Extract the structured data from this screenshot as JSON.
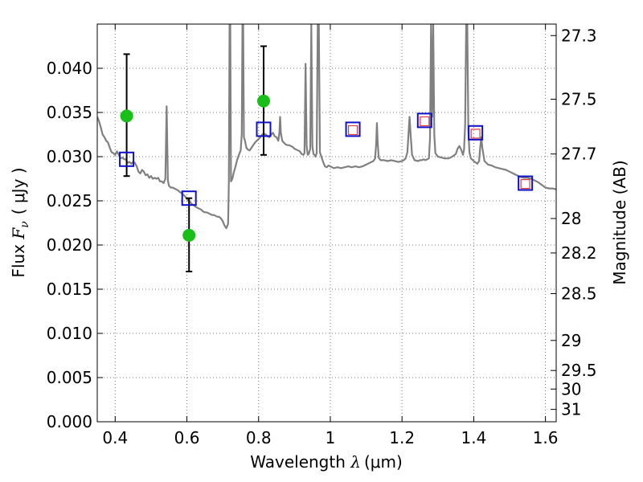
{
  "chart_data": {
    "type": "scatter",
    "title": "",
    "xlabel": "Wavelength  λ (μm)",
    "xlabel_parts": {
      "prefix": "Wavelength  ",
      "symbol": "λ",
      "unit": "(μm)"
    },
    "ylabel": "Flux  Fν  ( μJy )",
    "ylabel_parts": {
      "prefix": "Flux  ",
      "symbol": "F",
      "sub": "ν",
      "unit": "( μJy )"
    },
    "y2label": "Magnitude (AB)",
    "xlim": [
      0.35,
      1.63
    ],
    "ylim": [
      0.0,
      0.045
    ],
    "grid": true,
    "grid_style": "dotted",
    "x_ticks": [
      0.4,
      0.6,
      0.8,
      1.0,
      1.2,
      1.4,
      1.6
    ],
    "x_tick_labels": [
      "0.4",
      "0.6",
      "0.8",
      "1",
      "1.2",
      "1.4",
      "1.6"
    ],
    "y_ticks": [
      0.0,
      0.005,
      0.01,
      0.015,
      0.02,
      0.025,
      0.03,
      0.035,
      0.04
    ],
    "y_tick_labels": [
      "0.000",
      "0.005",
      "0.010",
      "0.015",
      "0.020",
      "0.025",
      "0.030",
      "0.035",
      "0.040"
    ],
    "y2_ticks": [
      {
        "label": "27.3",
        "flux": 0.0437
      },
      {
        "label": "27.5",
        "flux": 0.0365
      },
      {
        "label": "27.7",
        "flux": 0.0303
      },
      {
        "label": "28",
        "flux": 0.023
      },
      {
        "label": "28.2",
        "flux": 0.0191
      },
      {
        "label": "28.5",
        "flux": 0.0145
      },
      {
        "label": "29",
        "flux": 0.0092
      },
      {
        "label": "29.5",
        "flux": 0.0058
      },
      {
        "label": "30",
        "flux": 0.0037
      },
      {
        "label": "31",
        "flux": 0.0014
      }
    ],
    "colors": {
      "model": "#808080",
      "observed": "#19be19",
      "errorbar": "#000000",
      "model_photometry": "#1010c8",
      "input_photometry": "#e03c3c"
    },
    "series": [
      {
        "kind": "line",
        "points": [
          [
            0.35,
            0.0345
          ],
          [
            0.355,
            0.034
          ],
          [
            0.36,
            0.0333
          ],
          [
            0.365,
            0.0325
          ],
          [
            0.37,
            0.0322
          ],
          [
            0.375,
            0.0318
          ],
          [
            0.38,
            0.0316
          ],
          [
            0.385,
            0.031
          ],
          [
            0.39,
            0.0305
          ],
          [
            0.395,
            0.0304
          ],
          [
            0.4,
            0.0302
          ],
          [
            0.405,
            0.0306
          ],
          [
            0.41,
            0.0302
          ],
          [
            0.415,
            0.0298
          ],
          [
            0.42,
            0.0299
          ],
          [
            0.425,
            0.0297
          ],
          [
            0.43,
            0.0297
          ],
          [
            0.435,
            0.0293
          ],
          [
            0.44,
            0.0294
          ],
          [
            0.445,
            0.0292
          ],
          [
            0.45,
            0.0294
          ],
          [
            0.455,
            0.0293
          ],
          [
            0.46,
            0.0289
          ],
          [
            0.465,
            0.0283
          ],
          [
            0.47,
            0.0281
          ],
          [
            0.475,
            0.0285
          ],
          [
            0.48,
            0.0283
          ],
          [
            0.485,
            0.0279
          ],
          [
            0.49,
            0.028
          ],
          [
            0.495,
            0.0276
          ],
          [
            0.5,
            0.0278
          ],
          [
            0.505,
            0.0275
          ],
          [
            0.51,
            0.0276
          ],
          [
            0.515,
            0.0275
          ],
          [
            0.52,
            0.0276
          ],
          [
            0.525,
            0.0272
          ],
          [
            0.53,
            0.0272
          ],
          [
            0.535,
            0.027
          ],
          [
            0.54,
            0.0275
          ],
          [
            0.5435,
            0.0357
          ],
          [
            0.547,
            0.0273
          ],
          [
            0.55,
            0.0267
          ],
          [
            0.555,
            0.0265
          ],
          [
            0.56,
            0.0265
          ],
          [
            0.565,
            0.0264
          ],
          [
            0.57,
            0.0263
          ],
          [
            0.575,
            0.0262
          ],
          [
            0.58,
            0.026
          ],
          [
            0.585,
            0.0259
          ],
          [
            0.59,
            0.0257
          ],
          [
            0.595,
            0.0255
          ],
          [
            0.6,
            0.0252
          ],
          [
            0.605,
            0.025
          ],
          [
            0.61,
            0.0248
          ],
          [
            0.615,
            0.0246
          ],
          [
            0.62,
            0.0245
          ],
          [
            0.625,
            0.0243
          ],
          [
            0.63,
            0.0242
          ],
          [
            0.635,
            0.0241
          ],
          [
            0.64,
            0.024
          ],
          [
            0.645,
            0.0238
          ],
          [
            0.65,
            0.0237
          ],
          [
            0.655,
            0.0237
          ],
          [
            0.66,
            0.0236
          ],
          [
            0.665,
            0.0235
          ],
          [
            0.67,
            0.0234
          ],
          [
            0.675,
            0.0234
          ],
          [
            0.68,
            0.0233
          ],
          [
            0.685,
            0.0232
          ],
          [
            0.69,
            0.0232
          ],
          [
            0.695,
            0.023
          ],
          [
            0.7,
            0.0227
          ],
          [
            0.705,
            0.0222
          ],
          [
            0.71,
            0.0219
          ],
          [
            0.715,
            0.0224
          ],
          [
            0.717,
            0.027
          ],
          [
            0.719,
            0.045
          ],
          [
            0.721,
            0.045
          ],
          [
            0.723,
            0.0272
          ],
          [
            0.727,
            0.0275
          ],
          [
            0.73,
            0.0281
          ],
          [
            0.735,
            0.0288
          ],
          [
            0.74,
            0.0296
          ],
          [
            0.745,
            0.0302
          ],
          [
            0.75,
            0.0307
          ],
          [
            0.753,
            0.0325
          ],
          [
            0.755,
            0.045
          ],
          [
            0.757,
            0.045
          ],
          [
            0.759,
            0.0322
          ],
          [
            0.762,
            0.0318
          ],
          [
            0.766,
            0.031
          ],
          [
            0.77,
            0.0308
          ],
          [
            0.775,
            0.0307
          ],
          [
            0.78,
            0.031
          ],
          [
            0.785,
            0.0313
          ],
          [
            0.79,
            0.0316
          ],
          [
            0.795,
            0.0318
          ],
          [
            0.8,
            0.032
          ],
          [
            0.805,
            0.0322
          ],
          [
            0.81,
            0.0325
          ],
          [
            0.815,
            0.0326
          ],
          [
            0.82,
            0.0325
          ],
          [
            0.825,
            0.0323
          ],
          [
            0.83,
            0.0322
          ],
          [
            0.835,
            0.0325
          ],
          [
            0.84,
            0.0327
          ],
          [
            0.845,
            0.0323
          ],
          [
            0.85,
            0.0322
          ],
          [
            0.855,
            0.0318
          ],
          [
            0.858,
            0.0327
          ],
          [
            0.86,
            0.0345
          ],
          [
            0.862,
            0.0327
          ],
          [
            0.866,
            0.0318
          ],
          [
            0.87,
            0.0316
          ],
          [
            0.875,
            0.0314
          ],
          [
            0.88,
            0.0313
          ],
          [
            0.885,
            0.0313
          ],
          [
            0.89,
            0.0312
          ],
          [
            0.895,
            0.0311
          ],
          [
            0.9,
            0.0309
          ],
          [
            0.905,
            0.0308
          ],
          [
            0.91,
            0.0307
          ],
          [
            0.915,
            0.0306
          ],
          [
            0.92,
            0.0303
          ],
          [
            0.925,
            0.0302
          ],
          [
            0.928,
            0.0304
          ],
          [
            0.931,
            0.0405
          ],
          [
            0.934,
            0.0312
          ],
          [
            0.937,
            0.0302
          ],
          [
            0.94,
            0.0303
          ],
          [
            0.944,
            0.0309
          ],
          [
            0.947,
            0.045
          ],
          [
            0.95,
            0.0312
          ],
          [
            0.953,
            0.0303
          ],
          [
            0.956,
            0.0302
          ],
          [
            0.959,
            0.03
          ],
          [
            0.962,
            0.0304
          ],
          [
            0.965,
            0.045
          ],
          [
            0.968,
            0.045
          ],
          [
            0.971,
            0.0305
          ],
          [
            0.975,
            0.03
          ],
          [
            0.98,
            0.0294
          ],
          [
            0.985,
            0.0289
          ],
          [
            0.99,
            0.0288
          ],
          [
            0.995,
            0.029
          ],
          [
            1.0,
            0.0289
          ],
          [
            1.01,
            0.0287
          ],
          [
            1.02,
            0.0288
          ],
          [
            1.03,
            0.0287
          ],
          [
            1.04,
            0.0288
          ],
          [
            1.05,
            0.0289
          ],
          [
            1.06,
            0.0288
          ],
          [
            1.07,
            0.0289
          ],
          [
            1.08,
            0.0288
          ],
          [
            1.09,
            0.0289
          ],
          [
            1.1,
            0.0291
          ],
          [
            1.11,
            0.0293
          ],
          [
            1.12,
            0.0295
          ],
          [
            1.125,
            0.0298
          ],
          [
            1.128,
            0.0315
          ],
          [
            1.13,
            0.0338
          ],
          [
            1.132,
            0.0317
          ],
          [
            1.135,
            0.0299
          ],
          [
            1.14,
            0.0296
          ],
          [
            1.15,
            0.0296
          ],
          [
            1.16,
            0.0295
          ],
          [
            1.17,
            0.0296
          ],
          [
            1.18,
            0.0295
          ],
          [
            1.19,
            0.0294
          ],
          [
            1.2,
            0.0295
          ],
          [
            1.205,
            0.0296
          ],
          [
            1.21,
            0.0298
          ],
          [
            1.215,
            0.0305
          ],
          [
            1.218,
            0.0325
          ],
          [
            1.221,
            0.0345
          ],
          [
            1.224,
            0.0325
          ],
          [
            1.228,
            0.0302
          ],
          [
            1.235,
            0.0296
          ],
          [
            1.245,
            0.0295
          ],
          [
            1.25,
            0.0296
          ],
          [
            1.255,
            0.0296
          ],
          [
            1.26,
            0.0297
          ],
          [
            1.265,
            0.0296
          ],
          [
            1.27,
            0.0297
          ],
          [
            1.275,
            0.0298
          ],
          [
            1.278,
            0.032
          ],
          [
            1.281,
            0.045
          ],
          [
            1.284,
            0.0345
          ],
          [
            1.287,
            0.045
          ],
          [
            1.29,
            0.0325
          ],
          [
            1.293,
            0.0304
          ],
          [
            1.3,
            0.03
          ],
          [
            1.31,
            0.0299
          ],
          [
            1.32,
            0.0298
          ],
          [
            1.33,
            0.0298
          ],
          [
            1.34,
            0.03
          ],
          [
            1.35,
            0.0303
          ],
          [
            1.355,
            0.0309
          ],
          [
            1.36,
            0.0312
          ],
          [
            1.365,
            0.0308
          ],
          [
            1.37,
            0.0302
          ],
          [
            1.373,
            0.0308
          ],
          [
            1.376,
            0.0335
          ],
          [
            1.379,
            0.045
          ],
          [
            1.382,
            0.045
          ],
          [
            1.385,
            0.033
          ],
          [
            1.388,
            0.0305
          ],
          [
            1.392,
            0.0298
          ],
          [
            1.4,
            0.0295
          ],
          [
            1.41,
            0.0292
          ],
          [
            1.415,
            0.0295
          ],
          [
            1.418,
            0.031
          ],
          [
            1.421,
            0.0322
          ],
          [
            1.424,
            0.031
          ],
          [
            1.43,
            0.0295
          ],
          [
            1.44,
            0.0291
          ],
          [
            1.45,
            0.029
          ],
          [
            1.46,
            0.0288
          ],
          [
            1.47,
            0.0287
          ],
          [
            1.48,
            0.0286
          ],
          [
            1.49,
            0.0285
          ],
          [
            1.5,
            0.0283
          ],
          [
            1.51,
            0.0281
          ],
          [
            1.52,
            0.0279
          ],
          [
            1.53,
            0.0277
          ],
          [
            1.54,
            0.0276
          ],
          [
            1.55,
            0.0276
          ],
          [
            1.56,
            0.0275
          ],
          [
            1.57,
            0.0273
          ],
          [
            1.58,
            0.0271
          ],
          [
            1.59,
            0.0268
          ],
          [
            1.6,
            0.0265
          ],
          [
            1.61,
            0.0264
          ],
          [
            1.62,
            0.0264
          ],
          [
            1.63,
            0.0263
          ]
        ]
      },
      {
        "kind": "observed_with_errorbars",
        "points": [
          {
            "x": 0.432,
            "y": 0.0346,
            "ylow": 0.0278,
            "yhigh": 0.0416
          },
          {
            "x": 0.606,
            "y": 0.0211,
            "ylow": 0.017,
            "yhigh": 0.0253
          },
          {
            "x": 0.814,
            "y": 0.0363,
            "ylow": 0.0302,
            "yhigh": 0.0425
          }
        ]
      },
      {
        "kind": "model_photometry",
        "marker": "open-square-large",
        "points": [
          [
            0.432,
            0.0297
          ],
          [
            0.606,
            0.0253
          ],
          [
            0.814,
            0.0331
          ],
          [
            1.063,
            0.0331
          ],
          [
            1.263,
            0.0341
          ],
          [
            1.405,
            0.0327
          ],
          [
            1.544,
            0.027
          ]
        ]
      },
      {
        "kind": "input_photometry",
        "marker": "open-square-small",
        "points": [
          [
            1.063,
            0.033
          ],
          [
            1.263,
            0.034
          ],
          [
            1.405,
            0.0326
          ],
          [
            1.544,
            0.0269
          ]
        ]
      }
    ]
  }
}
